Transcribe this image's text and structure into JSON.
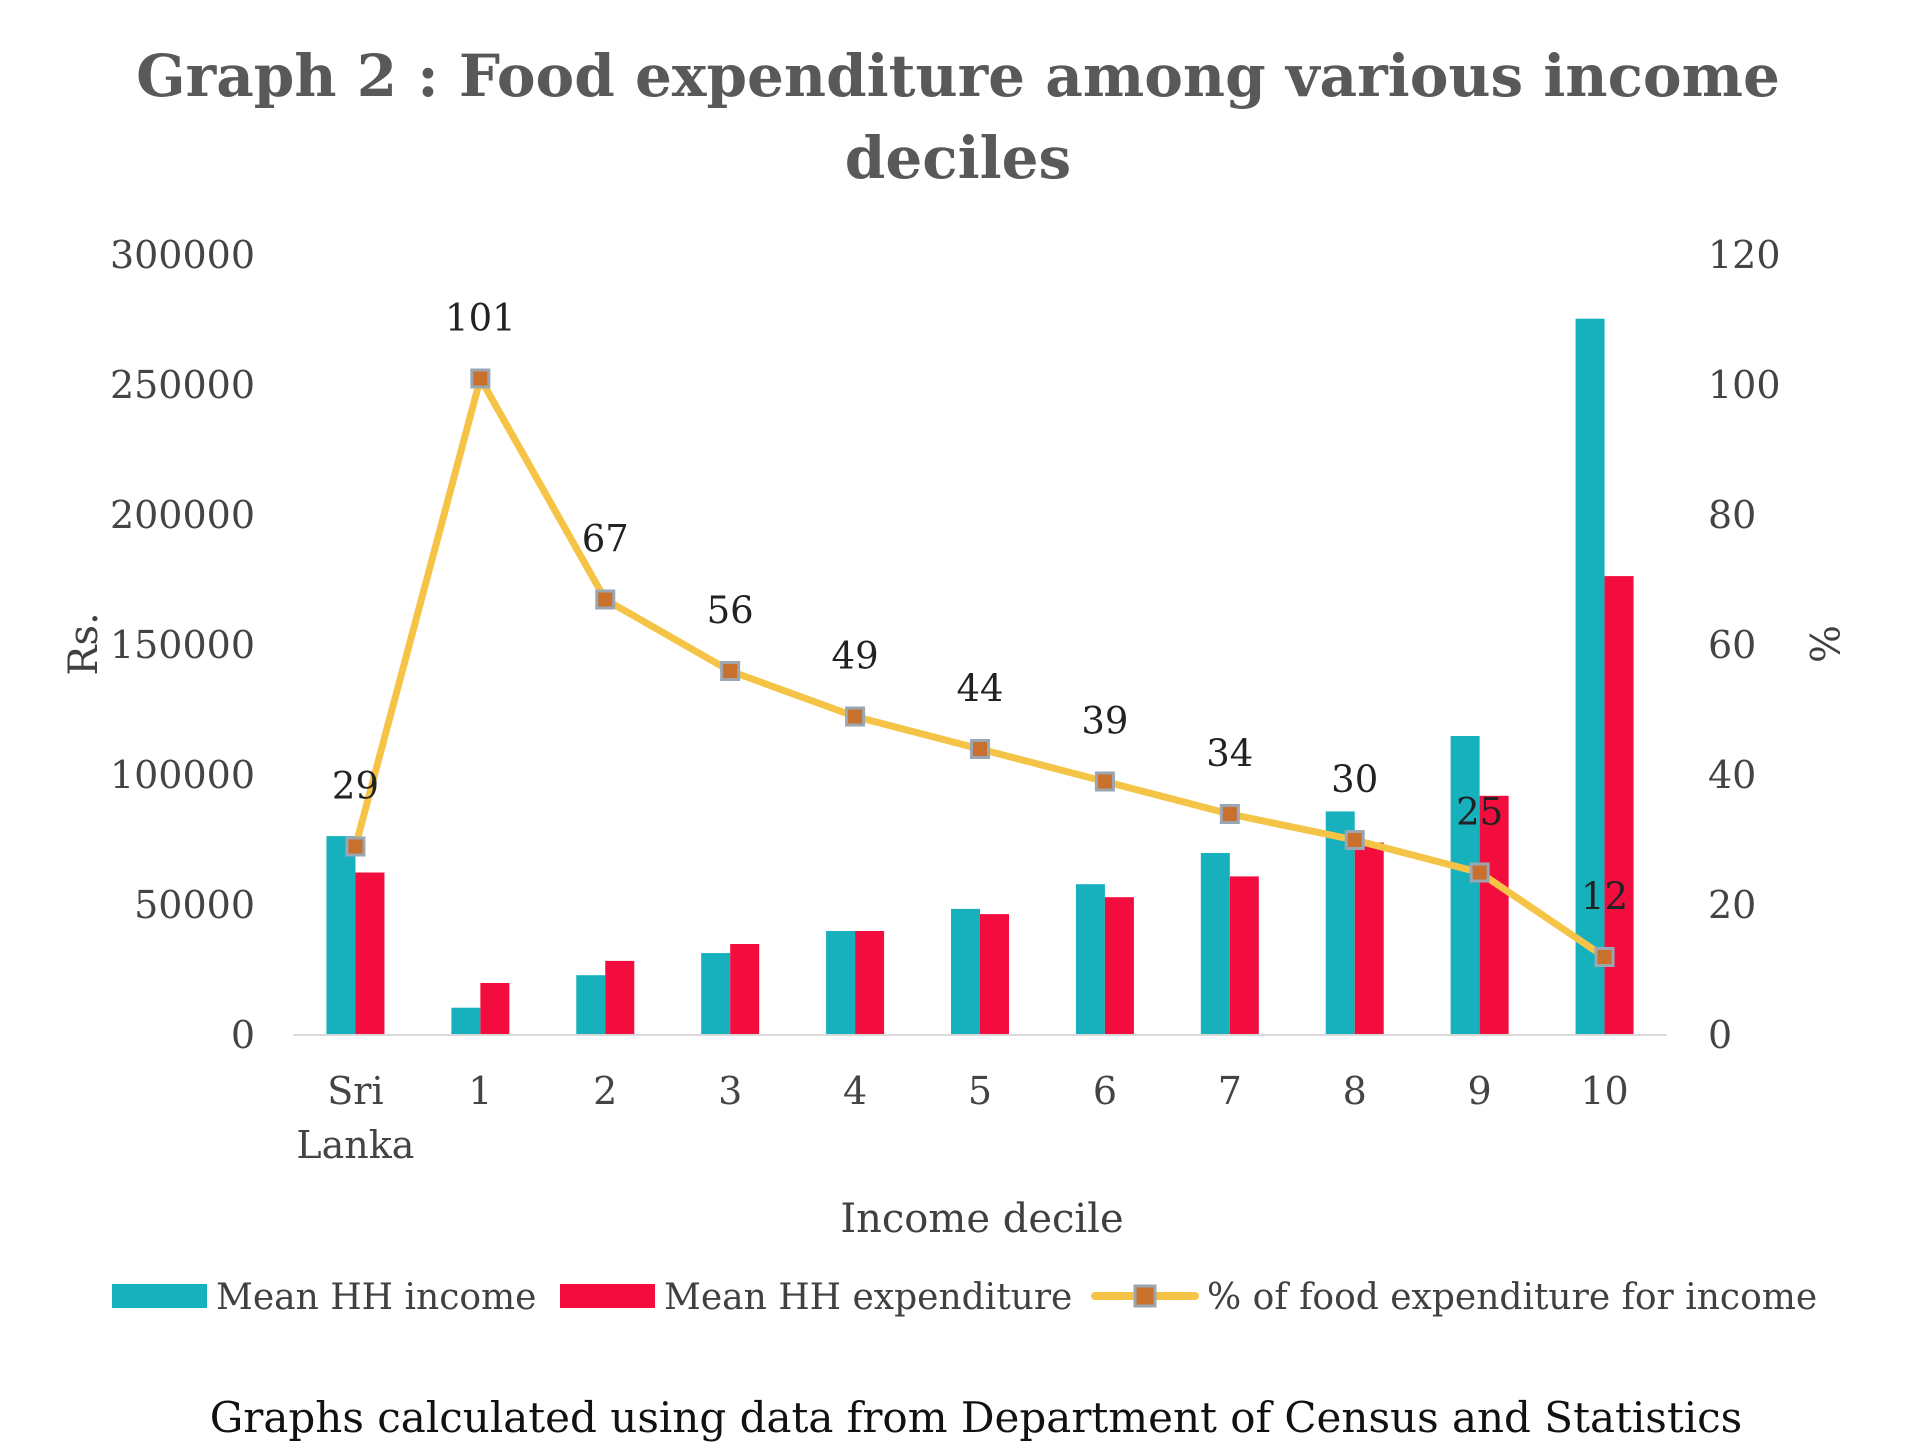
{
  "chart_data": {
    "type": "bar",
    "title": "Graph 2 : Food expenditure among various income deciles",
    "title_lines": [
      "Graph 2 : Food expenditure among various income",
      "deciles"
    ],
    "categories": [
      "Sri Lanka",
      "1",
      "2",
      "3",
      "4",
      "5",
      "6",
      "7",
      "8",
      "9",
      "10"
    ],
    "category_lines": [
      [
        "Sri",
        "Lanka"
      ],
      [
        "1"
      ],
      [
        "2"
      ],
      [
        "3"
      ],
      [
        "4"
      ],
      [
        "5"
      ],
      [
        "6"
      ],
      [
        "7"
      ],
      [
        "8"
      ],
      [
        "9"
      ],
      [
        "10"
      ]
    ],
    "xlabel": "Income decile",
    "ylabel": "Rs.",
    "y2label": "%",
    "ylim": [
      0,
      300000
    ],
    "y2lim": [
      0,
      120
    ],
    "yticks": [
      "0",
      "50000",
      "100000",
      "150000",
      "200000",
      "250000",
      "300000"
    ],
    "y2ticks": [
      "0",
      "20",
      "40",
      "60",
      "80",
      "100",
      "120"
    ],
    "grid": false,
    "legend_position": "bottom",
    "series": [
      {
        "name": "Mean HH income",
        "kind": "bar",
        "axis": "left",
        "color": "#17B1BD",
        "values": [
          76500,
          10500,
          23000,
          31500,
          40000,
          48500,
          58000,
          70000,
          86000,
          115000,
          275500
        ]
      },
      {
        "name": "Mean HH expenditure",
        "kind": "bar",
        "axis": "left",
        "color": "#F20D3E",
        "values": [
          62500,
          20000,
          28500,
          35000,
          40000,
          46500,
          53000,
          61000,
          74000,
          92000,
          176500
        ]
      },
      {
        "name": "% of food expenditure for income",
        "kind": "line",
        "axis": "right",
        "color": "#F5C446",
        "marker_color": "#C8702C",
        "values": [
          29,
          101,
          67,
          56,
          49,
          44,
          39,
          34,
          30,
          25,
          12
        ],
        "labels": [
          "29",
          "101",
          "67",
          "56",
          "49",
          "44",
          "39",
          "34",
          "30",
          "25",
          "12"
        ]
      }
    ]
  },
  "source_note": "Graphs calculated using data from Department of Census and Statistics"
}
